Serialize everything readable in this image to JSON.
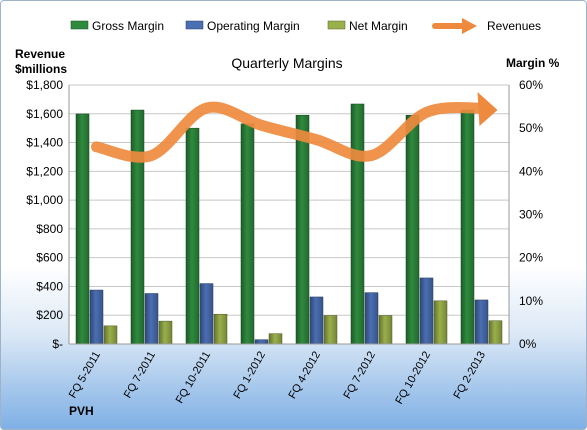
{
  "legend": [
    {
      "label": "Gross Margin",
      "type": "bar",
      "color": "#2e8b3e"
    },
    {
      "label": "Operating Margin",
      "type": "bar",
      "color": "#4a6fb3"
    },
    {
      "label": "Net Margin",
      "type": "bar",
      "color": "#9ab04a"
    },
    {
      "label": "Revenues",
      "type": "arrow",
      "color": "#ee8a3e"
    }
  ],
  "left_axis_title": [
    "Revenue",
    "$millions"
  ],
  "right_axis_title": "Margin %",
  "footer": "PVH",
  "chart_data": {
    "type": "bar",
    "title": "Quarterly Margins",
    "categories": [
      "FQ 5-2011",
      "FQ 7-2011",
      "FQ 10-2011",
      "FQ 1-2012",
      "FQ 4-2012",
      "FQ 7-2012",
      "FQ 10-2012",
      "FQ 2-2013"
    ],
    "y_left": {
      "label": "Revenue $millions",
      "range": [
        0,
        1800
      ],
      "ticks": [
        "$-",
        "$200",
        "$400",
        "$600",
        "$800",
        "$1,000",
        "$1,200",
        "$1,400",
        "$1,600",
        "$1,800"
      ]
    },
    "y_right": {
      "label": "Margin %",
      "range": [
        0,
        60
      ],
      "ticks": [
        "0%",
        "10%",
        "20%",
        "30%",
        "40%",
        "50%",
        "60%"
      ]
    },
    "series": [
      {
        "name": "Gross Margin",
        "axis": "right",
        "unit": "%",
        "values": [
          53.3,
          54.2,
          50.0,
          51.0,
          53.0,
          55.6,
          53.0,
          54.2
        ]
      },
      {
        "name": "Operating Margin",
        "axis": "right",
        "unit": "%",
        "values": [
          12.5,
          11.7,
          14.0,
          1.0,
          10.9,
          11.9,
          15.3,
          10.2
        ]
      },
      {
        "name": "Net Margin",
        "axis": "right",
        "unit": "%",
        "values": [
          4.2,
          5.3,
          6.9,
          2.4,
          6.6,
          6.6,
          10.0,
          5.4
        ]
      },
      {
        "name": "Revenues",
        "axis": "left",
        "type": "line",
        "values": [
          1370,
          1310,
          1640,
          1520,
          1420,
          1310,
          1610,
          1640
        ]
      }
    ],
    "grid": true,
    "legend_position": "top"
  }
}
